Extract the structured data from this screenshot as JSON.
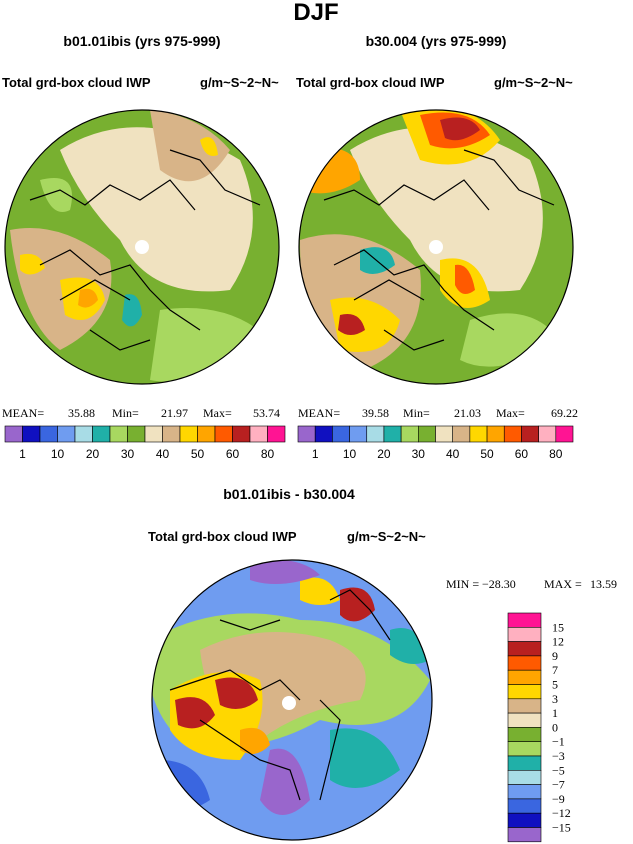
{
  "title": "DJF",
  "panels": [
    {
      "subtitle": "b01.01ibis (yrs 975-999)",
      "left_label": "Total grd-box cloud IWP",
      "right_label": "g/m~S~2~N~",
      "stats": [
        {
          "label": "MEAN=",
          "value": "35.88"
        },
        {
          "label": "Min=",
          "value": "21.97"
        },
        {
          "label": "Max=",
          "value": "53.74"
        }
      ]
    },
    {
      "subtitle": "b30.004 (yrs 975-999)",
      "left_label": "Total grd-box cloud IWP",
      "right_label": "g/m~S~2~N~",
      "stats": [
        {
          "label": "MEAN=",
          "value": "39.58"
        },
        {
          "label": "Min=",
          "value": "21.03"
        },
        {
          "label": "Max=",
          "value": "69.22"
        }
      ]
    }
  ],
  "colorbar": {
    "colors": [
      "#9966cc",
      "#1010c0",
      "#3a66e0",
      "#6f9cf0",
      "#a8dce6",
      "#20b0a8",
      "#a8d860",
      "#78b030",
      "#f0e2c0",
      "#d8b488",
      "#ffd700",
      "#ffa500",
      "#ff5a00",
      "#b82020",
      "#ffb0c0",
      "#ff1493"
    ],
    "labels": [
      "1",
      "10",
      "20",
      "30",
      "40",
      "50",
      "60",
      "80"
    ]
  },
  "difference": {
    "subtitle": "b01.01ibis - b30.004",
    "left_label": "Total grd-box cloud IWP",
    "right_label": "g/m~S~2~N~",
    "min_label": "MIN =",
    "min_value": "−28.30",
    "max_label": "MAX =",
    "max_value": "13.59",
    "colorbar": {
      "colors": [
        "#ff1493",
        "#ffb0c0",
        "#b82020",
        "#ff5a00",
        "#ffa500",
        "#ffd700",
        "#d8b488",
        "#f0e2c0",
        "#78b030",
        "#a8d860",
        "#20b0a8",
        "#a8dce6",
        "#6f9cf0",
        "#3a66e0",
        "#1010c0",
        "#9966cc"
      ],
      "labels": [
        "15",
        "12",
        "9",
        "7",
        "5",
        "3",
        "1",
        "0",
        "−1",
        "−3",
        "−5",
        "−7",
        "−9",
        "−12",
        "−15"
      ]
    }
  }
}
